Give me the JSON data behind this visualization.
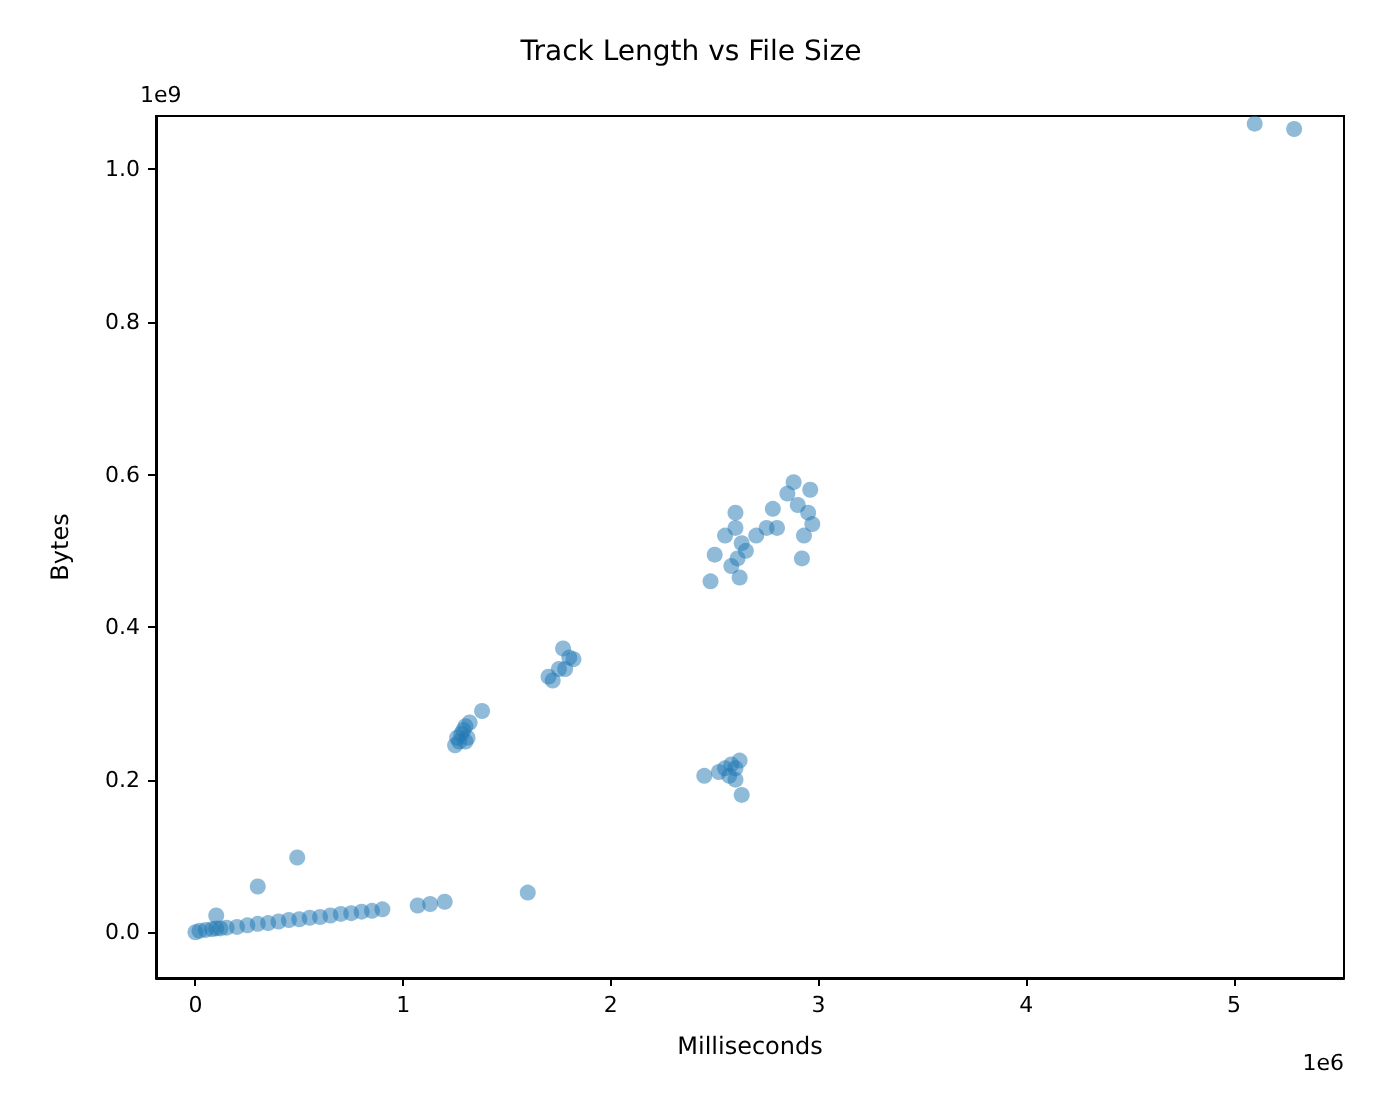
{
  "chart_data": {
    "type": "scatter",
    "title": "Track Length vs File Size",
    "xlabel": "Milliseconds",
    "ylabel": "Bytes",
    "annotations": [
      "1e9",
      "1e6"
    ],
    "x": [
      0.0,
      0.02,
      0.05,
      0.08,
      0.1,
      0.12,
      0.15,
      0.2,
      0.25,
      0.3,
      0.35,
      0.4,
      0.45,
      0.5,
      0.55,
      0.6,
      0.65,
      0.7,
      0.75,
      0.8,
      0.85,
      0.9,
      0.1,
      0.3,
      0.49,
      1.07,
      1.13,
      1.2,
      1.6,
      1.25,
      1.27,
      1.28,
      1.29,
      1.3,
      1.31,
      1.32,
      1.26,
      1.3,
      1.38,
      1.7,
      1.72,
      1.75,
      1.77,
      1.8,
      1.82,
      1.78,
      2.48,
      2.5,
      2.55,
      2.6,
      2.65,
      2.62,
      2.58,
      2.6,
      2.63,
      2.61,
      2.7,
      2.75,
      2.78,
      2.85,
      2.88,
      2.8,
      2.92,
      2.93,
      2.95,
      2.96,
      2.9,
      2.97,
      2.45,
      2.52,
      2.55,
      2.58,
      2.6,
      2.62,
      2.63,
      2.6,
      2.57,
      5.1,
      5.29
    ],
    "values": [
      0.0,
      0.002,
      0.003,
      0.004,
      0.005,
      0.005,
      0.006,
      0.007,
      0.009,
      0.011,
      0.012,
      0.014,
      0.016,
      0.017,
      0.019,
      0.02,
      0.022,
      0.024,
      0.025,
      0.027,
      0.028,
      0.03,
      0.022,
      0.06,
      0.098,
      0.035,
      0.037,
      0.04,
      0.052,
      0.245,
      0.25,
      0.26,
      0.265,
      0.27,
      0.255,
      0.275,
      0.255,
      0.25,
      0.29,
      0.335,
      0.33,
      0.345,
      0.372,
      0.36,
      0.358,
      0.345,
      0.46,
      0.495,
      0.52,
      0.55,
      0.5,
      0.465,
      0.48,
      0.53,
      0.51,
      0.49,
      0.52,
      0.53,
      0.555,
      0.575,
      0.59,
      0.53,
      0.49,
      0.52,
      0.55,
      0.58,
      0.56,
      0.535,
      0.205,
      0.21,
      0.215,
      0.22,
      0.2,
      0.225,
      0.18,
      0.215,
      0.205,
      1.06,
      1.053
    ],
    "color": "#1f77b4",
    "marker": "circle",
    "xlim": [
      -0.19,
      5.53
    ],
    "xticks": [
      0,
      1,
      2,
      3,
      4,
      5
    ],
    "ylim": [
      -0.06,
      1.07
    ],
    "yticks": [
      {
        "value": 0,
        "label": "0.0"
      },
      {
        "value": 0.2,
        "label": "0.2"
      },
      {
        "value": 0.4,
        "label": "0.4"
      },
      {
        "value": 0.6,
        "label": "0.6"
      },
      {
        "value": 0.8,
        "label": "0.8"
      },
      {
        "value": 1.0,
        "label": "1.0"
      }
    ],
    "grid": false
  }
}
